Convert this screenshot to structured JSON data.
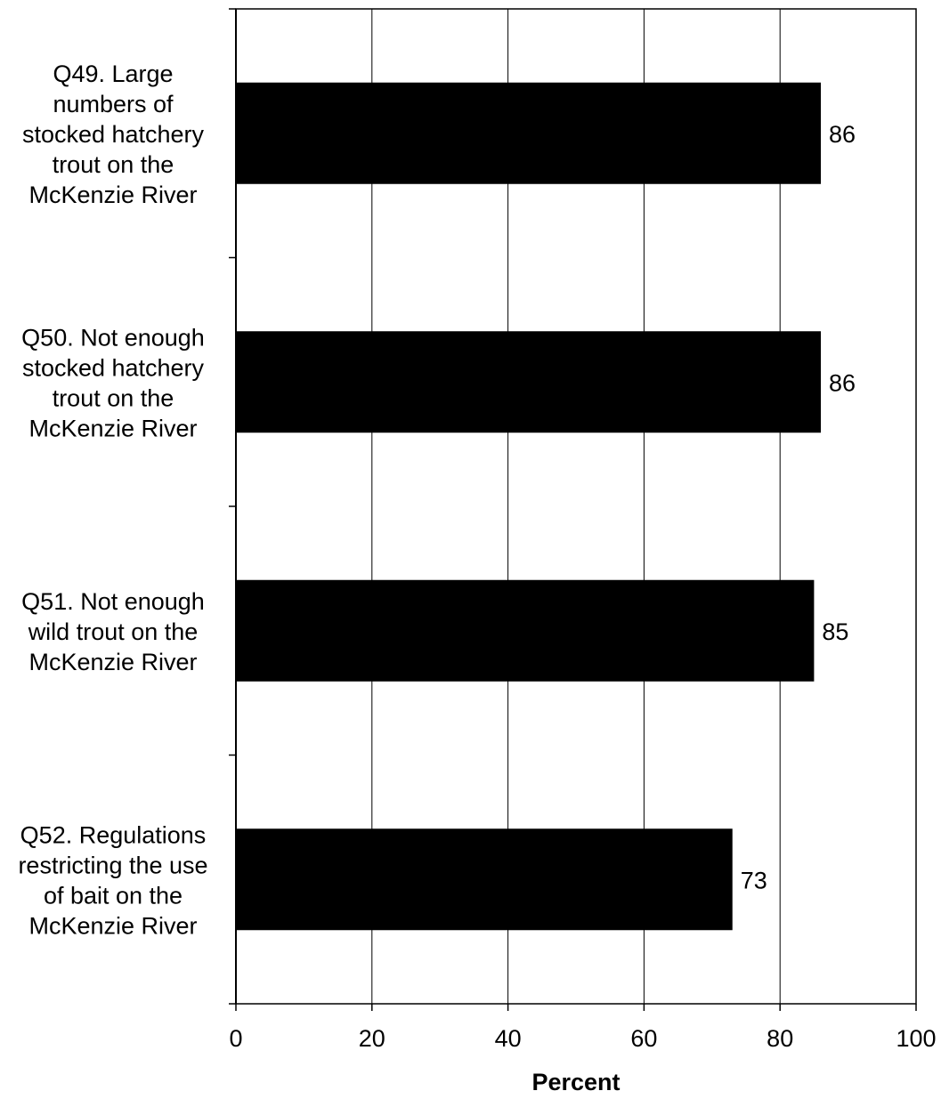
{
  "chart_data": {
    "type": "bar",
    "orientation": "horizontal",
    "categories": [
      [
        "Q49. Large",
        "numbers of",
        "stocked hatchery",
        "trout on the",
        "McKenzie River"
      ],
      [
        "Q50. Not enough",
        "stocked hatchery",
        "trout on the",
        "McKenzie River"
      ],
      [
        "Q51. Not enough",
        "wild trout on the",
        "McKenzie River"
      ],
      [
        "Q52. Regulations",
        "restricting the use",
        "of bait on the",
        "McKenzie River"
      ]
    ],
    "values": [
      86,
      86,
      85,
      73
    ],
    "data_labels": [
      "86",
      "86",
      "85",
      "73"
    ],
    "xlabel": "Percent",
    "xlim": [
      0,
      100
    ],
    "xticks": [
      "0",
      "20",
      "40",
      "60",
      "80",
      "100"
    ],
    "grid": "vertical",
    "bar_color": "#000000"
  }
}
